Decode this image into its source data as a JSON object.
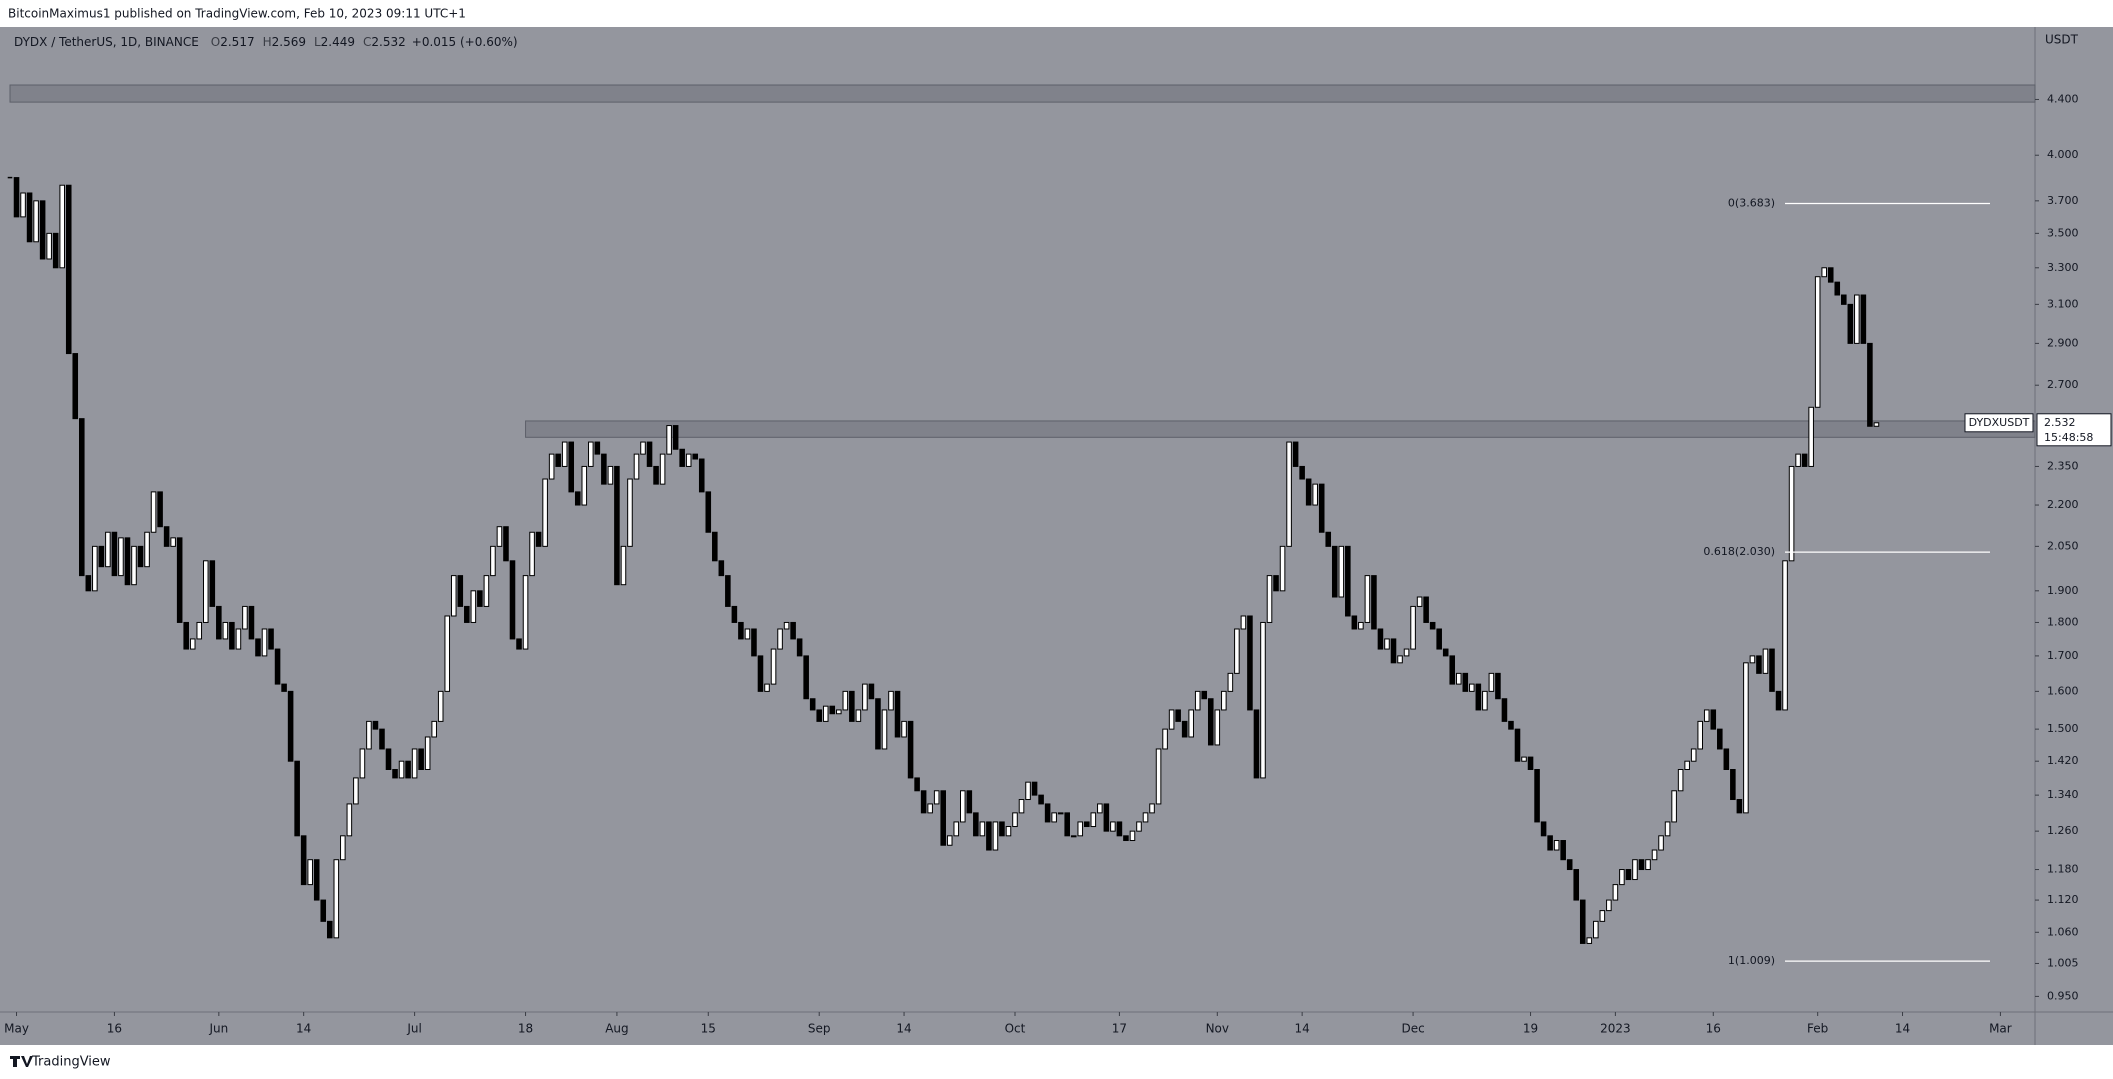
{
  "header": {
    "attribution": "BitcoinMaximus1 published on TradingView.com, Feb 10, 2023 09:11 UTC+1",
    "logo": "TradingView"
  },
  "chart_data": {
    "type": "candlestick",
    "title": "DYDX / TetherUS, 1D, BINANCE",
    "ohlc": [
      {
        "key": "O",
        "value": 2.517
      },
      {
        "key": "H",
        "value": 2.569
      },
      {
        "key": "L",
        "value": 2.449
      },
      {
        "key": "C",
        "value": 2.532
      }
    ],
    "change": "+0.015 (+0.60%)",
    "y_axis_label": "USDT",
    "log_scale": true,
    "up_color": "#ffffff",
    "down_color": "#000000",
    "close": [
      3.85,
      3.6,
      3.75,
      3.45,
      3.7,
      3.35,
      3.5,
      3.3,
      3.8,
      2.85,
      2.55,
      1.95,
      1.9,
      2.05,
      1.98,
      2.1,
      1.95,
      2.08,
      1.92,
      2.05,
      1.98,
      2.1,
      2.25,
      2.12,
      2.05,
      2.08,
      1.8,
      1.72,
      1.75,
      1.8,
      2.0,
      1.85,
      1.75,
      1.8,
      1.72,
      1.78,
      1.85,
      1.75,
      1.7,
      1.78,
      1.72,
      1.62,
      1.6,
      1.42,
      1.25,
      1.15,
      1.2,
      1.12,
      1.08,
      1.05,
      1.2,
      1.25,
      1.32,
      1.38,
      1.45,
      1.52,
      1.5,
      1.45,
      1.4,
      1.38,
      1.42,
      1.38,
      1.45,
      1.4,
      1.48,
      1.52,
      1.6,
      1.82,
      1.95,
      1.85,
      1.8,
      1.9,
      1.85,
      1.95,
      2.05,
      2.12,
      2.0,
      1.75,
      1.72,
      1.95,
      2.1,
      2.05,
      2.3,
      2.4,
      2.35,
      2.45,
      2.25,
      2.2,
      2.35,
      2.45,
      2.4,
      2.28,
      2.35,
      1.92,
      2.05,
      2.3,
      2.4,
      2.45,
      2.35,
      2.28,
      2.4,
      2.52,
      2.42,
      2.35,
      2.4,
      2.38,
      2.25,
      2.1,
      2.0,
      1.95,
      1.85,
      1.8,
      1.75,
      1.78,
      1.7,
      1.6,
      1.62,
      1.72,
      1.78,
      1.8,
      1.75,
      1.7,
      1.58,
      1.55,
      1.52,
      1.56,
      1.54,
      1.55,
      1.6,
      1.52,
      1.55,
      1.62,
      1.58,
      1.45,
      1.55,
      1.6,
      1.48,
      1.52,
      1.38,
      1.35,
      1.3,
      1.32,
      1.35,
      1.23,
      1.25,
      1.28,
      1.35,
      1.3,
      1.25,
      1.28,
      1.22,
      1.28,
      1.25,
      1.27,
      1.3,
      1.33,
      1.37,
      1.34,
      1.32,
      1.28,
      1.3,
      1.3,
      1.25,
      1.25,
      1.28,
      1.27,
      1.3,
      1.32,
      1.26,
      1.28,
      1.25,
      1.24,
      1.26,
      1.28,
      1.3,
      1.32,
      1.45,
      1.5,
      1.55,
      1.52,
      1.48,
      1.55,
      1.6,
      1.58,
      1.46,
      1.55,
      1.6,
      1.65,
      1.78,
      1.82,
      1.55,
      1.38,
      1.8,
      1.95,
      1.9,
      2.05,
      2.45,
      2.35,
      2.3,
      2.2,
      2.28,
      2.1,
      2.05,
      1.88,
      2.05,
      1.82,
      1.78,
      1.8,
      1.95,
      1.78,
      1.72,
      1.75,
      1.68,
      1.7,
      1.72,
      1.85,
      1.88,
      1.8,
      1.78,
      1.72,
      1.7,
      1.62,
      1.65,
      1.6,
      1.62,
      1.55,
      1.6,
      1.65,
      1.58,
      1.52,
      1.5,
      1.42,
      1.43,
      1.4,
      1.28,
      1.25,
      1.22,
      1.24,
      1.2,
      1.18,
      1.12,
      1.04,
      1.05,
      1.08,
      1.1,
      1.12,
      1.15,
      1.18,
      1.16,
      1.2,
      1.18,
      1.2,
      1.22,
      1.25,
      1.28,
      1.35,
      1.4,
      1.42,
      1.45,
      1.52,
      1.55,
      1.5,
      1.45,
      1.4,
      1.33,
      1.3,
      1.68,
      1.7,
      1.65,
      1.72,
      1.6,
      1.55,
      2.0,
      2.35,
      2.4,
      2.35,
      2.6,
      3.25,
      3.3,
      3.22,
      3.15,
      3.1,
      2.9,
      3.15,
      2.9,
      2.517,
      2.532
    ],
    "xlim": [
      0,
      310.3
    ],
    "xticks": [
      {
        "value": 1,
        "label": "May"
      },
      {
        "value": 16,
        "label": "16"
      },
      {
        "value": 32,
        "label": "Jun"
      },
      {
        "value": 45,
        "label": "14"
      },
      {
        "value": 62,
        "label": "Jul"
      },
      {
        "value": 79,
        "label": "18"
      },
      {
        "value": 93,
        "label": "Aug"
      },
      {
        "value": 107,
        "label": "15"
      },
      {
        "value": 124,
        "label": "Sep"
      },
      {
        "value": 137,
        "label": "14"
      },
      {
        "value": 154,
        "label": "Oct"
      },
      {
        "value": 170,
        "label": "17"
      },
      {
        "value": 185,
        "label": "Nov"
      },
      {
        "value": 198,
        "label": "14"
      },
      {
        "value": 215,
        "label": "Dec"
      },
      {
        "value": 233,
        "label": "19"
      },
      {
        "value": 246,
        "label": "2023"
      },
      {
        "value": 261,
        "label": "16"
      },
      {
        "value": 277,
        "label": "Feb"
      },
      {
        "value": 290,
        "label": "14"
      },
      {
        "value": 305,
        "label": "Mar"
      }
    ],
    "ylim": [
      0.925,
      4.98
    ],
    "yticks": [
      {
        "value": 4.4,
        "label": "4.400"
      },
      {
        "value": 4,
        "label": "4.000"
      },
      {
        "value": 3.7,
        "label": "3.700"
      },
      {
        "value": 3.5,
        "label": "3.500"
      },
      {
        "value": 3.3,
        "label": "3.300"
      },
      {
        "value": 3.1,
        "label": "3.100"
      },
      {
        "value": 2.9,
        "label": "2.900"
      },
      {
        "value": 2.7,
        "label": "2.700"
      },
      {
        "value": 2.35,
        "label": "2.350"
      },
      {
        "value": 2.2,
        "label": "2.200"
      },
      {
        "value": 2.05,
        "label": "2.050"
      },
      {
        "value": 1.9,
        "label": "1.900"
      },
      {
        "value": 1.8,
        "label": "1.800"
      },
      {
        "value": 1.7,
        "label": "1.700"
      },
      {
        "value": 1.6,
        "label": "1.600"
      },
      {
        "value": 1.5,
        "label": "1.500"
      },
      {
        "value": 1.42,
        "label": "1.420"
      },
      {
        "value": 1.34,
        "label": "1.340"
      },
      {
        "value": 1.26,
        "label": "1.260"
      },
      {
        "value": 1.18,
        "label": "1.180"
      },
      {
        "value": 1.12,
        "label": "1.120"
      },
      {
        "value": 1.06,
        "label": "1.060"
      },
      1.005,
      {
        "value": 0.95,
        "label": "0.950"
      }
    ],
    "zones": [
      {
        "x_from": 0,
        "from": 4.38,
        "to": 4.51
      },
      {
        "x_from": 79,
        "from": 2.47,
        "to": 2.54
      }
    ],
    "fib_levels": [
      {
        "value": 3.683,
        "label": "0(3.683)"
      },
      {
        "value": 2.03,
        "label": "0.618(2.030)"
      },
      {
        "value": 1.009,
        "label": "1(1.009)"
      }
    ],
    "symbol_tag": "DYDXUSDT",
    "countdown": "15:48:58"
  }
}
